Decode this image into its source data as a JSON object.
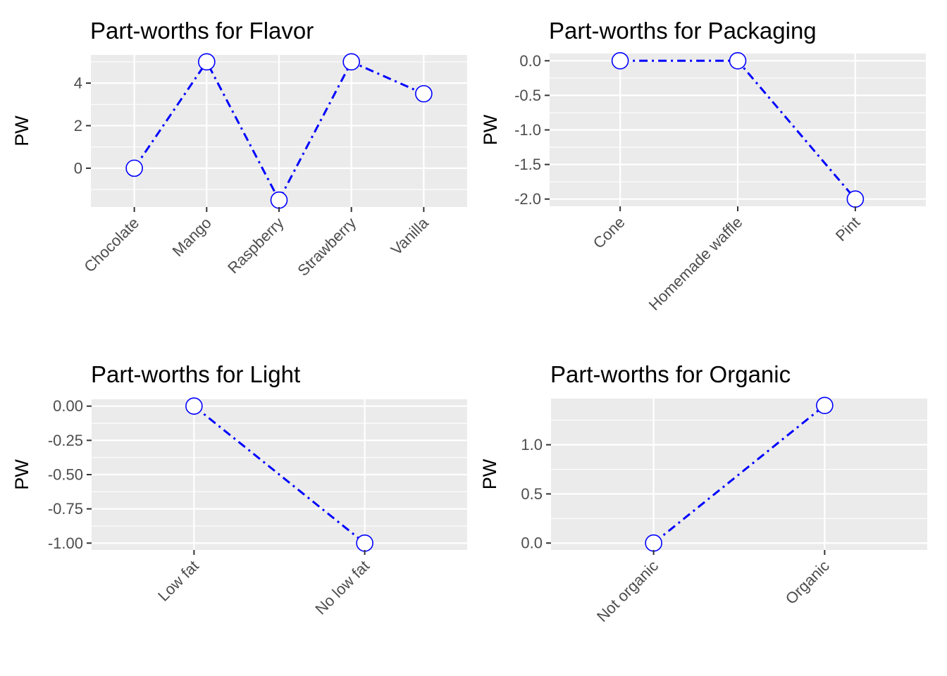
{
  "page": {
    "background": "#FFFFFF",
    "grid_layout": "2x2"
  },
  "style": {
    "panel_bg": "#EBEBEB",
    "grid_color": "#FFFFFF",
    "axis_tick_color": "#333333",
    "tick_label_color": "#4D4D4D",
    "title_color": "#000000",
    "series_color": "#0000FF",
    "marker_fill": "#FFFFFF"
  },
  "chart_data": [
    {
      "type": "line",
      "title": "Part-worths for Flavor",
      "ylabel": "PW",
      "xlabel": "",
      "categories": [
        "Chocolate",
        "Mango",
        "Raspberry",
        "Strawberry",
        "Vanilla"
      ],
      "values": [
        0,
        5,
        -1.5,
        5,
        3.5
      ],
      "ylim": [
        -1.825,
        5.325
      ],
      "yticks": [
        {
          "value": 0,
          "label": "0"
        },
        {
          "value": 2,
          "label": "2"
        },
        {
          "value": 4,
          "label": "4"
        }
      ],
      "yminor": [
        -1,
        1,
        3,
        5
      ],
      "grid": true,
      "legend": "none",
      "line_style": "dotdash",
      "marker": "open-circle",
      "x_label_angle": 45
    },
    {
      "type": "line",
      "title": "Part-worths for Packaging",
      "ylabel": "PW",
      "xlabel": "",
      "categories": [
        "Cone",
        "Homemade waffle",
        "Pint"
      ],
      "values": [
        0,
        0,
        -2
      ],
      "ylim": [
        -2.105,
        0.105
      ],
      "yticks": [
        {
          "value": 0,
          "label": "0.0"
        },
        {
          "value": -0.5,
          "label": "-0.5"
        },
        {
          "value": -1,
          "label": "-1.0"
        },
        {
          "value": -1.5,
          "label": "-1.5"
        },
        {
          "value": -2,
          "label": "-2.0"
        }
      ],
      "yminor": [
        -0.25,
        -0.75,
        -1.25,
        -1.75
      ],
      "grid": true,
      "legend": "none",
      "line_style": "dotdash",
      "marker": "open-circle",
      "x_label_angle": 45
    },
    {
      "type": "line",
      "title": "Part-worths for Light",
      "ylabel": "PW",
      "xlabel": "",
      "categories": [
        "Low fat",
        "No low fat"
      ],
      "values": [
        0,
        -1
      ],
      "ylim": [
        -1.05,
        0.05
      ],
      "yticks": [
        {
          "value": 0,
          "label": "0.00"
        },
        {
          "value": -0.25,
          "label": "-0.25"
        },
        {
          "value": -0.5,
          "label": "-0.50"
        },
        {
          "value": -0.75,
          "label": "-0.75"
        },
        {
          "value": -1,
          "label": "-1.00"
        }
      ],
      "yminor": [
        -0.125,
        -0.375,
        -0.625,
        -0.875
      ],
      "grid": true,
      "legend": "none",
      "line_style": "dotdash",
      "marker": "open-circle",
      "x_label_angle": 45
    },
    {
      "type": "line",
      "title": "Part-worths for Organic",
      "ylabel": "PW",
      "xlabel": "",
      "categories": [
        "Not organic",
        "Organic"
      ],
      "values": [
        0,
        1.4
      ],
      "ylim": [
        -0.07,
        1.47
      ],
      "yticks": [
        {
          "value": 0,
          "label": "0.0"
        },
        {
          "value": 0.5,
          "label": "0.5"
        },
        {
          "value": 1,
          "label": "1.0"
        }
      ],
      "yminor": [
        0.25,
        0.75,
        1.25
      ],
      "grid": true,
      "legend": "none",
      "line_style": "dotdash",
      "marker": "open-circle",
      "x_label_angle": 45
    }
  ]
}
